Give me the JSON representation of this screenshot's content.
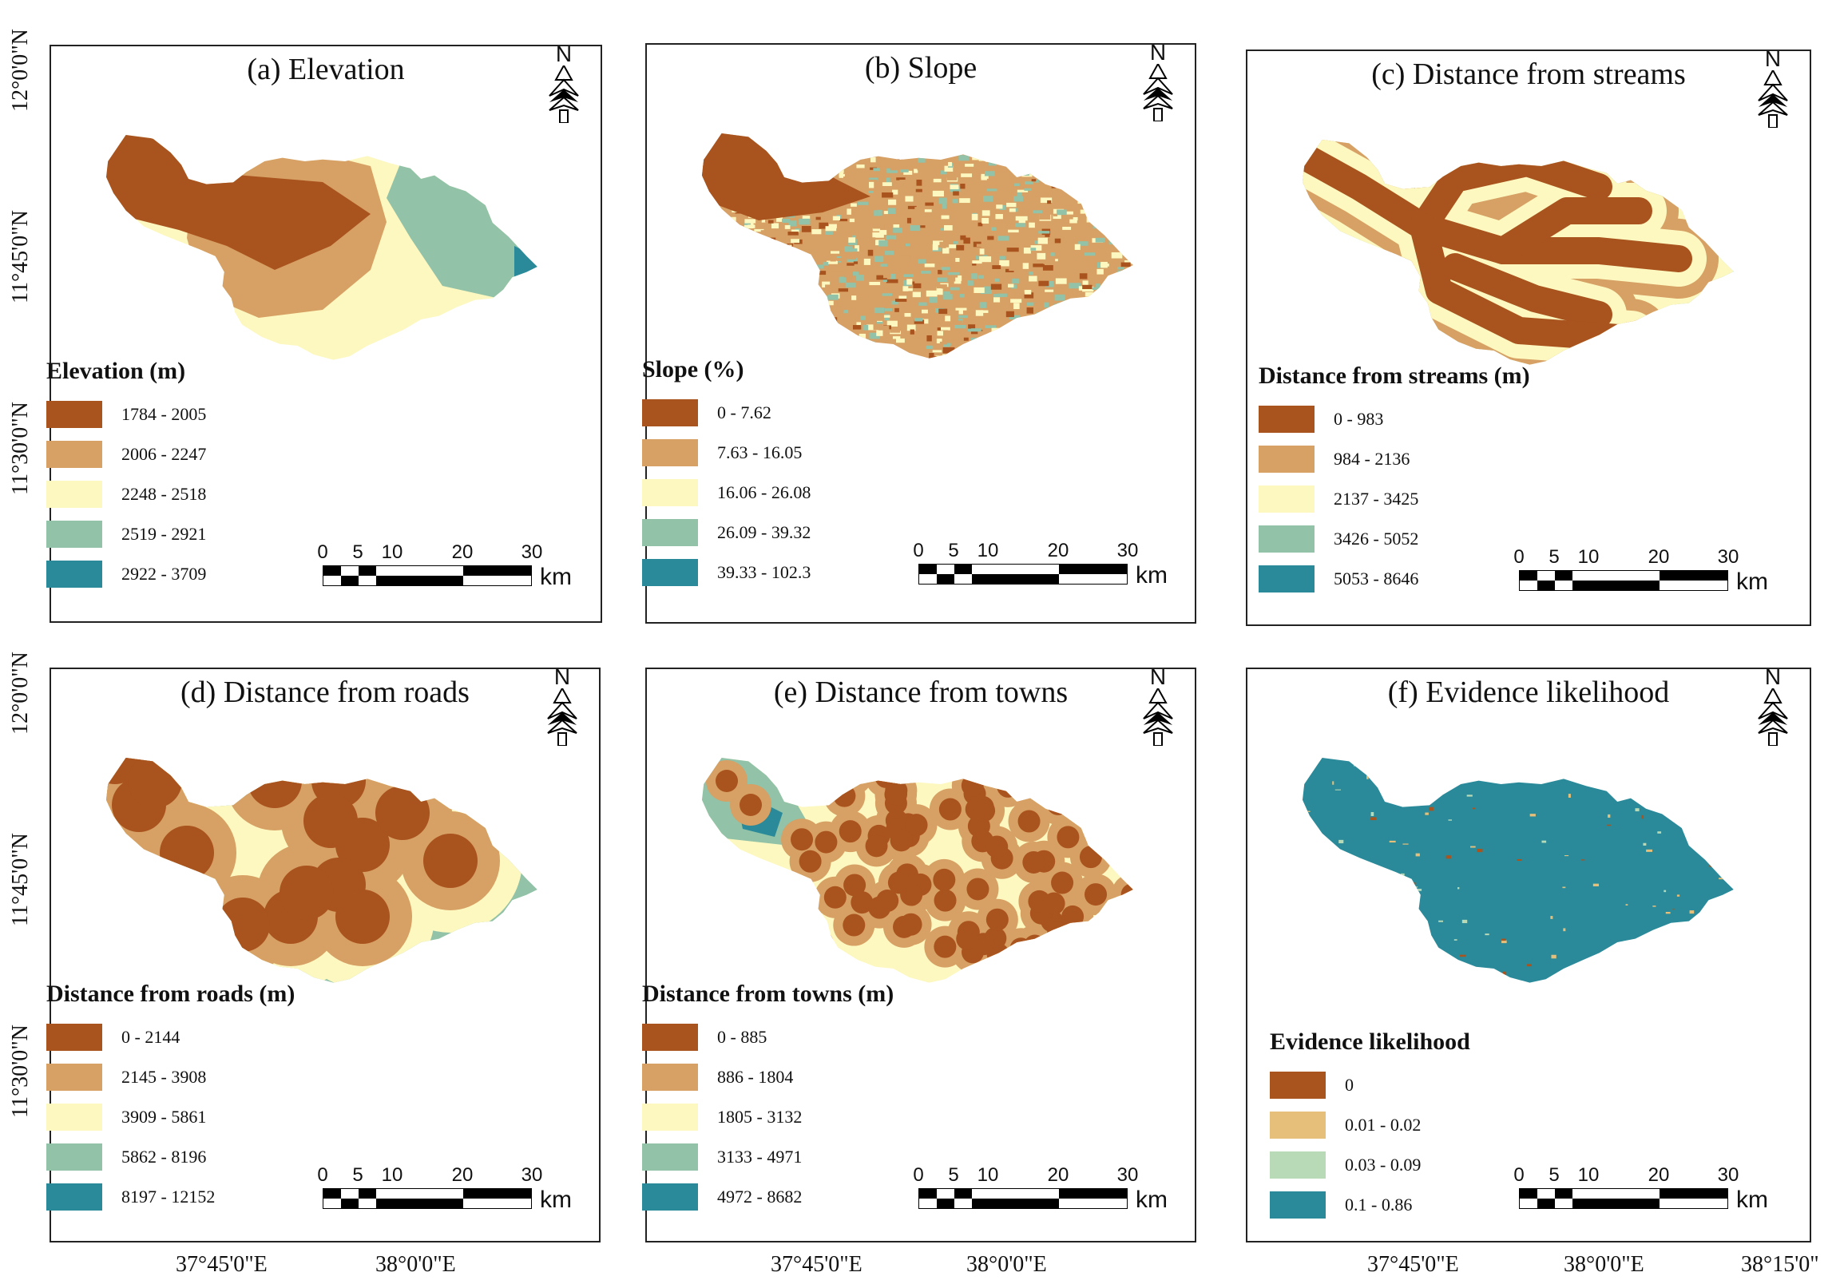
{
  "colors": {
    "c1": "#a9531e",
    "c2": "#d7a064",
    "c3": "#fdf8bf",
    "c4": "#92c2a7",
    "c5": "#2a8a99",
    "ev2": "#e6c07a",
    "ev3": "#b9dab7"
  },
  "panels": [
    {
      "title": "(a) Elevation",
      "legend_title": "Elevation (m)",
      "classes": [
        "1784 - 2005",
        "2006 - 2247",
        "2248 - 2518",
        "2519 - 2921",
        "2922 - 3709"
      ]
    },
    {
      "title": "(b) Slope",
      "legend_title": "Slope (%)",
      "classes": [
        "0 - 7.62",
        "7.63 - 16.05",
        "16.06 - 26.08",
        "26.09 - 39.32",
        "39.33 - 102.3"
      ]
    },
    {
      "title": "(c) Distance from streams",
      "legend_title": "Distance from streams (m)",
      "classes": [
        "0 - 983",
        "984 - 2136",
        "2137 - 3425",
        "3426 - 5052",
        "5053 - 8646"
      ]
    },
    {
      "title": "(d) Distance from roads",
      "legend_title": "Distance from roads (m)",
      "classes": [
        "0 - 2144",
        "2145 - 3908",
        "3909 - 5861",
        "5862 - 8196",
        "8197 - 12152"
      ]
    },
    {
      "title": "(e) Distance from towns",
      "legend_title": "Distance from towns (m)",
      "classes": [
        "0 - 885",
        "886 - 1804",
        "1805 - 3132",
        "3133 - 4971",
        "4972 - 8682"
      ]
    },
    {
      "title": "(f) Evidence likelihood",
      "legend_title": "Evidence likelihood",
      "classes": [
        "0",
        "0.01 - 0.02",
        "0.03 - 0.09",
        "0.1 - 0.86"
      ]
    }
  ],
  "scale_bar": {
    "ticks": [
      "0",
      "5",
      "10",
      "20",
      "30"
    ],
    "unit": "km"
  },
  "north_label": "N",
  "lat_labels": [
    "12°0'0\"N",
    "11°45'0\"N",
    "11°30'0\"N"
  ],
  "lon_labels": [
    "37°45'0\"E",
    "38°0'0\"E",
    "38°15'0\""
  ]
}
